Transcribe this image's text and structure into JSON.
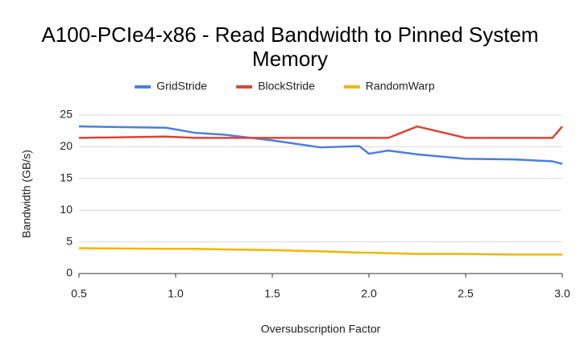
{
  "chart_data": {
    "type": "line",
    "title": [
      "A100-PCIe4-x86 - Read Bandwidth to Pinned System",
      "Memory"
    ],
    "x_label": "Oversubscription Factor",
    "y_label": "Bandwidth (GB/s)",
    "x": [
      0.5,
      0.95,
      1.1,
      1.25,
      1.5,
      1.75,
      1.95,
      2.0,
      2.1,
      2.25,
      2.5,
      2.75,
      2.95,
      3.0
    ],
    "series": [
      {
        "name": "GridStride",
        "color": "#4a7fe0",
        "values": [
          23.2,
          23.0,
          22.2,
          21.9,
          21.0,
          19.9,
          20.1,
          18.9,
          19.4,
          18.8,
          18.1,
          18.0,
          17.7,
          17.3
        ]
      },
      {
        "name": "BlockStride",
        "color": "#dc4437",
        "values": [
          21.4,
          21.6,
          21.4,
          21.4,
          21.4,
          21.4,
          21.4,
          21.4,
          21.4,
          23.2,
          21.4,
          21.4,
          21.4,
          23.2
        ]
      },
      {
        "name": "RandomWarp",
        "color": "#f4b400",
        "values": [
          4.0,
          3.9,
          3.9,
          3.8,
          3.7,
          3.5,
          3.3,
          3.3,
          3.2,
          3.1,
          3.1,
          3.0,
          3.0,
          3.0
        ]
      }
    ],
    "xlim": [
      0.5,
      3.0
    ],
    "xticks": [
      0.5,
      {
        "value": 1,
        "label": "1.0"
      },
      1.5,
      {
        "value": 2,
        "label": "2.0"
      },
      2.5,
      {
        "value": 3,
        "label": "3.0"
      }
    ],
    "ylim": [
      0,
      25
    ],
    "yticks": [
      0,
      5,
      10,
      15,
      20,
      25
    ],
    "grid": true,
    "legend": "top"
  }
}
